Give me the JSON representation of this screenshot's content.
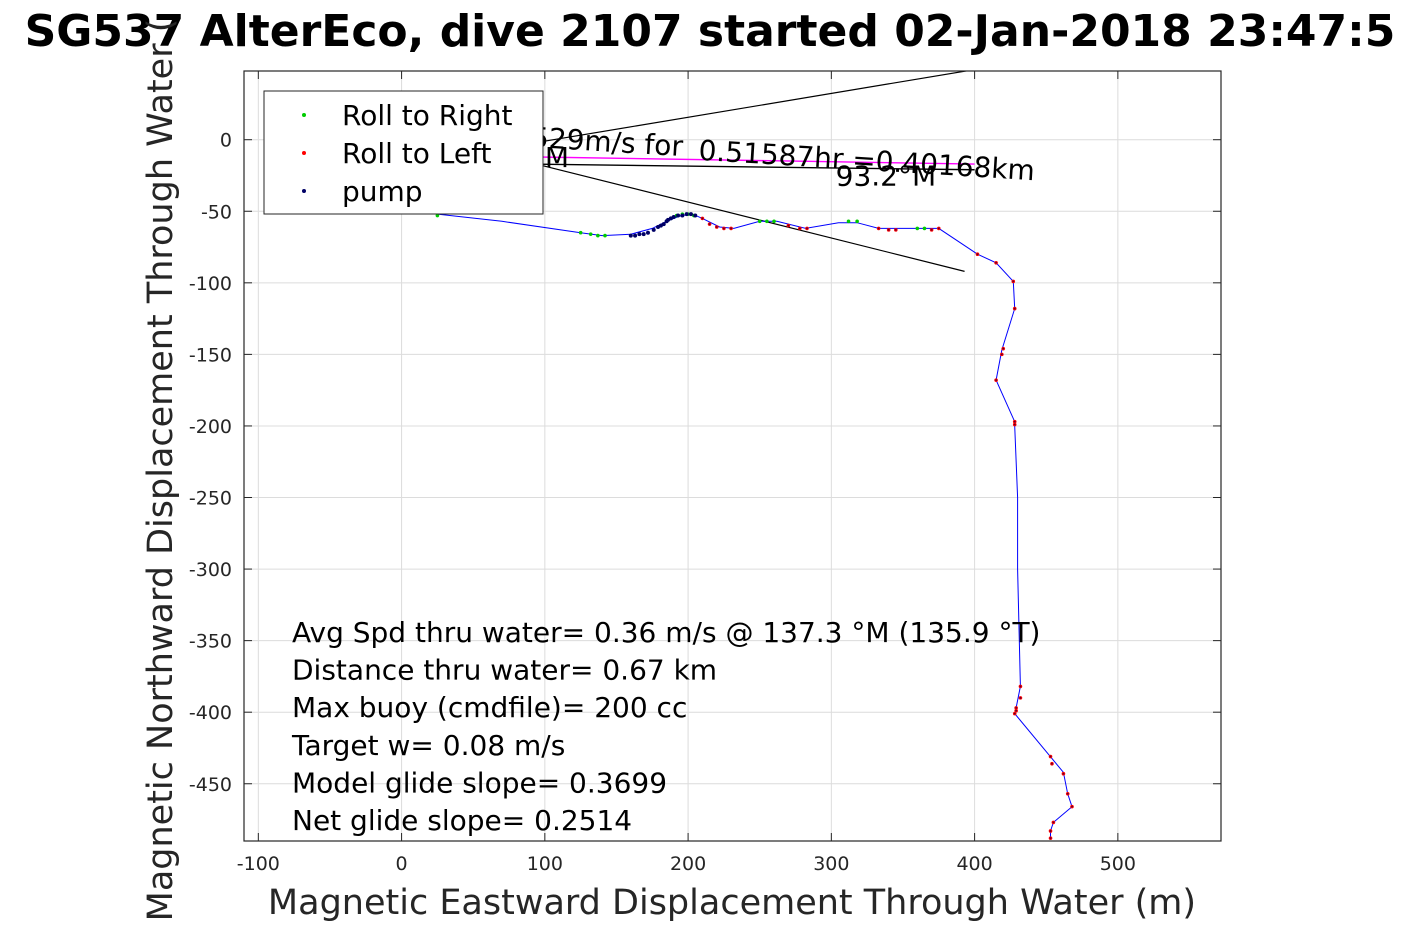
{
  "chart_data": {
    "type": "scatter",
    "title": "SG537 AlterEco, dive 2107 started 02-Jan-2018 23:47:5",
    "xlabel": "Magnetic Eastward Displacement Through Water (m)",
    "ylabel": "Magnetic Northward Displacement Through Water (",
    "xlim": [
      -110,
      572
    ],
    "ylim": [
      -490,
      48
    ],
    "x_ticks": [
      -100,
      0,
      100,
      200,
      300,
      400,
      500
    ],
    "y_ticks": [
      0,
      -50,
      -100,
      -150,
      -200,
      -250,
      -300,
      -350,
      -400,
      -450
    ],
    "x_tick_labels": [
      "-100",
      "0",
      "100",
      "200",
      "300",
      "400",
      "500"
    ],
    "y_tick_labels": [
      "0",
      "-50",
      "-100",
      "-150",
      "-200",
      "-250",
      "-300",
      "-350",
      "-400",
      "-450"
    ],
    "grid": true,
    "legend": {
      "position": "top-left",
      "entries": [
        {
          "label": "Roll to Right",
          "color": "#00cc00"
        },
        {
          "label": "Roll to Left",
          "color": "#ff0000"
        },
        {
          "label": "pump",
          "color": "#000066"
        }
      ]
    },
    "track": {
      "color": "#0000ff",
      "x": [
        25,
        70,
        125,
        140,
        160,
        175,
        185,
        195,
        203,
        210,
        222,
        232,
        250,
        262,
        282,
        305,
        318,
        333,
        360,
        375,
        402,
        415,
        427,
        428,
        419,
        415,
        428,
        428,
        430,
        430,
        432,
        429,
        428,
        452,
        462,
        465,
        468,
        455,
        453,
        453
      ],
      "y": [
        -52,
        -57,
        -65,
        -67,
        -66,
        -62,
        -57,
        -53,
        -52,
        -55,
        -61,
        -62,
        -57,
        -57,
        -62,
        -58,
        -58,
        -62,
        -62,
        -62,
        -80,
        -86,
        -99,
        -118,
        -147,
        -168,
        -197,
        -200,
        -250,
        -300,
        -382,
        -397,
        -401,
        -430,
        -442,
        -457,
        -466,
        -477,
        -483,
        -488
      ]
    },
    "roll_right": {
      "x": [
        25,
        125,
        132,
        137,
        142,
        188,
        192,
        196,
        200,
        204,
        250,
        255,
        260,
        312,
        318,
        360,
        365
      ],
      "y": [
        -53,
        -65,
        -66,
        -67,
        -67,
        -55,
        -53,
        -52,
        -52,
        -53,
        -57,
        -57,
        -57,
        -57,
        -57,
        -62,
        -62
      ]
    },
    "roll_left": {
      "x": [
        210,
        215,
        220,
        225,
        230,
        270,
        278,
        283,
        333,
        340,
        345,
        370,
        375,
        402,
        415,
        427,
        428,
        420,
        419,
        415,
        428,
        428,
        432,
        432,
        429,
        429,
        428,
        453,
        454,
        462,
        465,
        468,
        455,
        453,
        453
      ],
      "y": [
        -55,
        -59,
        -61,
        -62,
        -62,
        -60,
        -62,
        -62,
        -62,
        -63,
        -63,
        -63,
        -62,
        -80,
        -86,
        -99,
        -118,
        -146,
        -150,
        -168,
        -197,
        -199,
        -382,
        -390,
        -397,
        -399,
        -401,
        -431,
        -436,
        -443,
        -457,
        -466,
        -477,
        -483,
        -488
      ]
    },
    "pump": {
      "x": [
        160,
        163,
        166,
        169,
        172,
        176,
        179,
        181,
        183,
        185,
        186,
        188,
        190,
        193,
        196,
        199,
        202,
        205
      ],
      "y": [
        -67,
        -67,
        -66,
        -66,
        -65,
        -63,
        -61,
        -60,
        -59,
        -57,
        -56,
        -55,
        -54,
        -53,
        -53,
        -52,
        -52,
        -53
      ]
    },
    "current_vectors": [
      {
        "x": [
          90,
          400
        ],
        "y": [
          -12,
          -17
        ],
        "color": "#ff00ff"
      },
      {
        "x": [
          89,
          400
        ],
        "y": [
          -17,
          -21
        ],
        "color": "#000000"
      }
    ],
    "black_lines": [
      {
        "x": [
          94,
          400
        ],
        "y": [
          -2,
          49
        ]
      },
      {
        "x": [
          94,
          393
        ],
        "y": [
          -17,
          -92
        ]
      }
    ],
    "overlay_labels": [
      {
        "text": "529m/s for",
        "x": 90,
        "y": -5,
        "rotate": 3.5
      },
      {
        "text": "0.51587hr =0.40168km",
        "x": 207,
        "y": -14,
        "rotate": 3.5
      },
      {
        "text": "M",
        "x": 100,
        "y": -19,
        "rotate": 0
      },
      {
        "text": "93.2°M",
        "x": 303,
        "y": -32,
        "rotate": 0
      }
    ],
    "annotations": [
      "Avg Spd thru water=  0.36 m/s @ 137.3 °M (135.9 °T)",
      "Distance thru water=  0.67 km",
      "Max buoy (cmdfile)= 200 cc",
      "Target w= 0.08 m/s",
      "Model glide slope= 0.3699",
      "Net glide slope= 0.2514"
    ]
  }
}
